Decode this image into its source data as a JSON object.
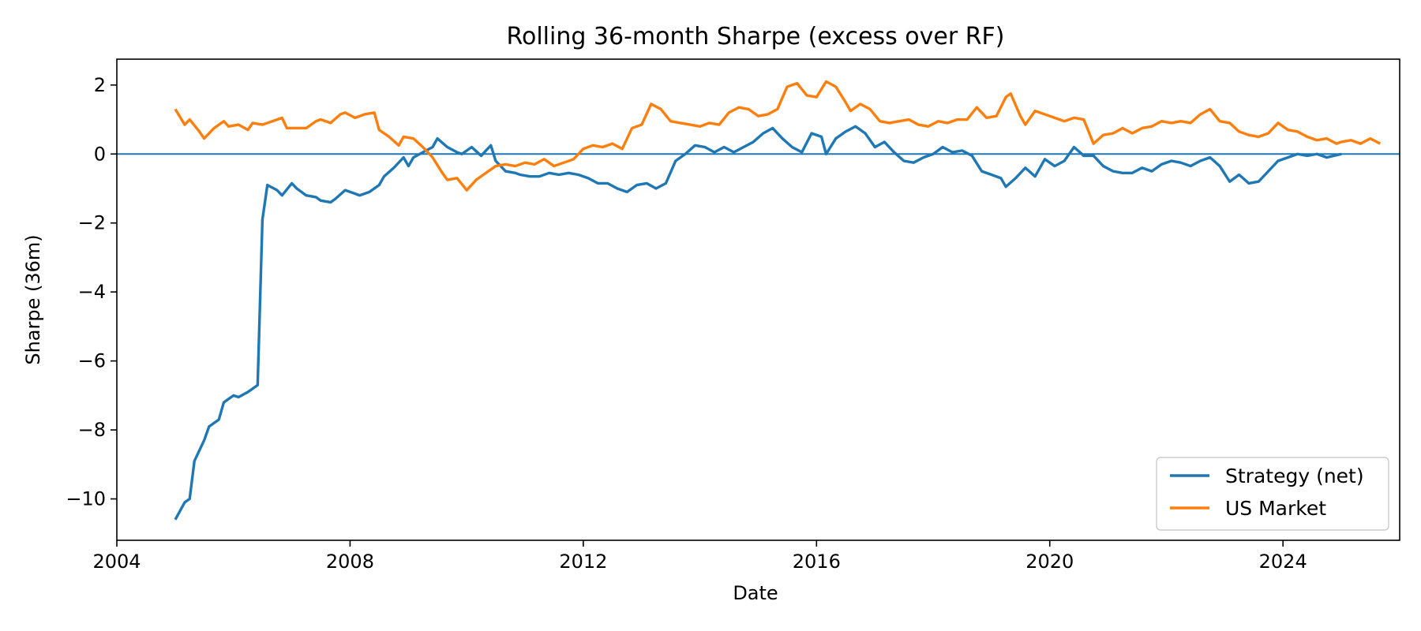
{
  "chart_data": {
    "type": "line",
    "title": "Rolling 36-month Sharpe (excess over RF)",
    "xlabel": "Date",
    "ylabel": "Sharpe (36m)",
    "xlim": [
      "2004-01-01",
      "2026-01-01"
    ],
    "ylim": [
      -11.2,
      2.75
    ],
    "x_ticks": [
      {
        "date": "2004-01-01",
        "label": "2004"
      },
      {
        "date": "2008-01-01",
        "label": "2008"
      },
      {
        "date": "2012-01-01",
        "label": "2012"
      },
      {
        "date": "2016-01-01",
        "label": "2016"
      },
      {
        "date": "2020-01-01",
        "label": "2020"
      },
      {
        "date": "2024-01-01",
        "label": "2024"
      }
    ],
    "y_ticks": [
      {
        "value": 2,
        "label": "2"
      },
      {
        "value": 0,
        "label": "0"
      },
      {
        "value": -2,
        "label": "−2"
      },
      {
        "value": -4,
        "label": "−4"
      },
      {
        "value": -6,
        "label": "−6"
      },
      {
        "value": -8,
        "label": "−8"
      },
      {
        "value": -10,
        "label": "−10"
      }
    ],
    "reference_line": {
      "y": 0,
      "color": "#1f77b4"
    },
    "grid": false,
    "legend_position": "lower-right",
    "series": [
      {
        "name": "Strategy (net)",
        "color": "#1f77b4",
        "points": [
          [
            "2005-01-01",
            -10.6
          ],
          [
            "2005-03-01",
            -10.1
          ],
          [
            "2005-04-01",
            -10.0
          ],
          [
            "2005-05-01",
            -8.9
          ],
          [
            "2005-07-01",
            -8.3
          ],
          [
            "2005-08-01",
            -7.9
          ],
          [
            "2005-10-01",
            -7.7
          ],
          [
            "2005-11-01",
            -7.2
          ],
          [
            "2006-01-01",
            -7.0
          ],
          [
            "2006-02-01",
            -7.05
          ],
          [
            "2006-04-01",
            -6.9
          ],
          [
            "2006-06-01",
            -6.7
          ],
          [
            "2006-07-01",
            -1.9
          ],
          [
            "2006-08-01",
            -0.9
          ],
          [
            "2006-10-01",
            -1.05
          ],
          [
            "2006-11-01",
            -1.2
          ],
          [
            "2007-01-01",
            -0.85
          ],
          [
            "2007-02-01",
            -1.0
          ],
          [
            "2007-04-01",
            -1.2
          ],
          [
            "2007-06-01",
            -1.25
          ],
          [
            "2007-07-01",
            -1.35
          ],
          [
            "2007-09-01",
            -1.4
          ],
          [
            "2007-10-01",
            -1.3
          ],
          [
            "2007-12-01",
            -1.05
          ],
          [
            "2008-02-01",
            -1.15
          ],
          [
            "2008-03-01",
            -1.2
          ],
          [
            "2008-05-01",
            -1.1
          ],
          [
            "2008-07-01",
            -0.9
          ],
          [
            "2008-08-01",
            -0.65
          ],
          [
            "2008-10-01",
            -0.4
          ],
          [
            "2008-12-01",
            -0.1
          ],
          [
            "2009-01-01",
            -0.35
          ],
          [
            "2009-02-01",
            -0.1
          ],
          [
            "2009-04-01",
            0.05
          ],
          [
            "2009-06-01",
            0.2
          ],
          [
            "2009-07-01",
            0.45
          ],
          [
            "2009-09-01",
            0.2
          ],
          [
            "2009-11-01",
            0.05
          ],
          [
            "2009-12-01",
            0.0
          ],
          [
            "2010-02-01",
            0.2
          ],
          [
            "2010-04-01",
            -0.05
          ],
          [
            "2010-06-01",
            0.25
          ],
          [
            "2010-07-01",
            -0.2
          ],
          [
            "2010-09-01",
            -0.5
          ],
          [
            "2010-11-01",
            -0.55
          ],
          [
            "2010-12-01",
            -0.6
          ],
          [
            "2011-02-01",
            -0.65
          ],
          [
            "2011-04-01",
            -0.65
          ],
          [
            "2011-06-01",
            -0.55
          ],
          [
            "2011-08-01",
            -0.6
          ],
          [
            "2011-10-01",
            -0.55
          ],
          [
            "2011-12-01",
            -0.6
          ],
          [
            "2012-02-01",
            -0.7
          ],
          [
            "2012-04-01",
            -0.85
          ],
          [
            "2012-06-01",
            -0.85
          ],
          [
            "2012-08-01",
            -1.0
          ],
          [
            "2012-10-01",
            -1.1
          ],
          [
            "2012-12-01",
            -0.9
          ],
          [
            "2013-02-01",
            -0.85
          ],
          [
            "2013-04-01",
            -1.0
          ],
          [
            "2013-06-01",
            -0.85
          ],
          [
            "2013-08-01",
            -0.2
          ],
          [
            "2013-10-01",
            0.0
          ],
          [
            "2013-12-01",
            0.25
          ],
          [
            "2014-02-01",
            0.2
          ],
          [
            "2014-04-01",
            0.05
          ],
          [
            "2014-06-01",
            0.2
          ],
          [
            "2014-08-01",
            0.05
          ],
          [
            "2014-10-01",
            0.2
          ],
          [
            "2014-12-01",
            0.35
          ],
          [
            "2015-02-01",
            0.6
          ],
          [
            "2015-04-01",
            0.75
          ],
          [
            "2015-06-01",
            0.45
          ],
          [
            "2015-08-01",
            0.2
          ],
          [
            "2015-10-01",
            0.05
          ],
          [
            "2015-12-01",
            0.6
          ],
          [
            "2016-02-01",
            0.5
          ],
          [
            "2016-03-01",
            0.0
          ],
          [
            "2016-05-01",
            0.45
          ],
          [
            "2016-07-01",
            0.65
          ],
          [
            "2016-09-01",
            0.8
          ],
          [
            "2016-11-01",
            0.6
          ],
          [
            "2017-01-01",
            0.2
          ],
          [
            "2017-03-01",
            0.35
          ],
          [
            "2017-05-01",
            0.05
          ],
          [
            "2017-07-01",
            -0.2
          ],
          [
            "2017-09-01",
            -0.25
          ],
          [
            "2017-11-01",
            -0.1
          ],
          [
            "2018-01-01",
            0.0
          ],
          [
            "2018-03-01",
            0.2
          ],
          [
            "2018-05-01",
            0.05
          ],
          [
            "2018-07-01",
            0.1
          ],
          [
            "2018-09-01",
            -0.05
          ],
          [
            "2018-11-01",
            -0.5
          ],
          [
            "2019-01-01",
            -0.6
          ],
          [
            "2019-03-01",
            -0.7
          ],
          [
            "2019-04-01",
            -0.95
          ],
          [
            "2019-06-01",
            -0.7
          ],
          [
            "2019-08-01",
            -0.4
          ],
          [
            "2019-10-01",
            -0.65
          ],
          [
            "2019-12-01",
            -0.15
          ],
          [
            "2020-02-01",
            -0.35
          ],
          [
            "2020-04-01",
            -0.2
          ],
          [
            "2020-06-01",
            0.2
          ],
          [
            "2020-08-01",
            -0.05
          ],
          [
            "2020-10-01",
            -0.05
          ],
          [
            "2020-12-01",
            -0.35
          ],
          [
            "2021-02-01",
            -0.5
          ],
          [
            "2021-04-01",
            -0.55
          ],
          [
            "2021-06-01",
            -0.55
          ],
          [
            "2021-08-01",
            -0.4
          ],
          [
            "2021-10-01",
            -0.5
          ],
          [
            "2021-12-01",
            -0.3
          ],
          [
            "2022-02-01",
            -0.2
          ],
          [
            "2022-04-01",
            -0.25
          ],
          [
            "2022-06-01",
            -0.35
          ],
          [
            "2022-08-01",
            -0.2
          ],
          [
            "2022-10-01",
            -0.1
          ],
          [
            "2022-12-01",
            -0.35
          ],
          [
            "2023-02-01",
            -0.8
          ],
          [
            "2023-04-01",
            -0.6
          ],
          [
            "2023-06-01",
            -0.85
          ],
          [
            "2023-08-01",
            -0.8
          ],
          [
            "2023-10-01",
            -0.5
          ],
          [
            "2023-12-01",
            -0.2
          ],
          [
            "2024-02-01",
            -0.1
          ],
          [
            "2024-04-01",
            0.0
          ],
          [
            "2024-06-01",
            -0.05
          ],
          [
            "2024-08-01",
            0.0
          ],
          [
            "2024-10-01",
            -0.1
          ],
          [
            "2025-01-01",
            0.0
          ]
        ]
      },
      {
        "name": "US Market",
        "color": "#ff7f0e",
        "points": [
          [
            "2005-01-01",
            1.3
          ],
          [
            "2005-03-01",
            0.85
          ],
          [
            "2005-04-01",
            1.0
          ],
          [
            "2005-06-01",
            0.65
          ],
          [
            "2005-07-01",
            0.45
          ],
          [
            "2005-09-01",
            0.75
          ],
          [
            "2005-11-01",
            0.95
          ],
          [
            "2005-12-01",
            0.8
          ],
          [
            "2006-02-01",
            0.85
          ],
          [
            "2006-04-01",
            0.7
          ],
          [
            "2006-05-01",
            0.9
          ],
          [
            "2006-07-01",
            0.85
          ],
          [
            "2006-09-01",
            0.95
          ],
          [
            "2006-11-01",
            1.05
          ],
          [
            "2006-12-01",
            0.75
          ],
          [
            "2007-02-01",
            0.75
          ],
          [
            "2007-04-01",
            0.75
          ],
          [
            "2007-06-01",
            0.95
          ],
          [
            "2007-07-01",
            1.0
          ],
          [
            "2007-09-01",
            0.9
          ],
          [
            "2007-11-01",
            1.15
          ],
          [
            "2007-12-01",
            1.2
          ],
          [
            "2008-02-01",
            1.05
          ],
          [
            "2008-04-01",
            1.15
          ],
          [
            "2008-06-01",
            1.2
          ],
          [
            "2008-07-01",
            0.7
          ],
          [
            "2008-09-01",
            0.5
          ],
          [
            "2008-11-01",
            0.25
          ],
          [
            "2008-12-01",
            0.5
          ],
          [
            "2009-02-01",
            0.45
          ],
          [
            "2009-04-01",
            0.2
          ],
          [
            "2009-06-01",
            -0.1
          ],
          [
            "2009-08-01",
            -0.55
          ],
          [
            "2009-09-01",
            -0.75
          ],
          [
            "2009-11-01",
            -0.7
          ],
          [
            "2010-01-01",
            -1.05
          ],
          [
            "2010-03-01",
            -0.75
          ],
          [
            "2010-05-01",
            -0.55
          ],
          [
            "2010-07-01",
            -0.35
          ],
          [
            "2010-09-01",
            -0.3
          ],
          [
            "2010-11-01",
            -0.35
          ],
          [
            "2011-01-01",
            -0.25
          ],
          [
            "2011-03-01",
            -0.3
          ],
          [
            "2011-05-01",
            -0.15
          ],
          [
            "2011-07-01",
            -0.35
          ],
          [
            "2011-09-01",
            -0.25
          ],
          [
            "2011-11-01",
            -0.15
          ],
          [
            "2012-01-01",
            0.15
          ],
          [
            "2012-03-01",
            0.25
          ],
          [
            "2012-05-01",
            0.2
          ],
          [
            "2012-07-01",
            0.3
          ],
          [
            "2012-09-01",
            0.15
          ],
          [
            "2012-11-01",
            0.75
          ],
          [
            "2013-01-01",
            0.85
          ],
          [
            "2013-03-01",
            1.45
          ],
          [
            "2013-05-01",
            1.3
          ],
          [
            "2013-07-01",
            0.95
          ],
          [
            "2013-09-01",
            0.9
          ],
          [
            "2013-11-01",
            0.85
          ],
          [
            "2014-01-01",
            0.8
          ],
          [
            "2014-03-01",
            0.9
          ],
          [
            "2014-05-01",
            0.85
          ],
          [
            "2014-07-01",
            1.2
          ],
          [
            "2014-09-01",
            1.35
          ],
          [
            "2014-11-01",
            1.3
          ],
          [
            "2015-01-01",
            1.1
          ],
          [
            "2015-03-01",
            1.15
          ],
          [
            "2015-05-01",
            1.3
          ],
          [
            "2015-07-01",
            1.95
          ],
          [
            "2015-09-01",
            2.05
          ],
          [
            "2015-11-01",
            1.7
          ],
          [
            "2016-01-01",
            1.65
          ],
          [
            "2016-03-01",
            2.1
          ],
          [
            "2016-05-01",
            1.95
          ],
          [
            "2016-07-01",
            1.5
          ],
          [
            "2016-08-01",
            1.25
          ],
          [
            "2016-10-01",
            1.45
          ],
          [
            "2016-12-01",
            1.3
          ],
          [
            "2017-02-01",
            0.95
          ],
          [
            "2017-04-01",
            0.9
          ],
          [
            "2017-06-01",
            0.95
          ],
          [
            "2017-08-01",
            1.0
          ],
          [
            "2017-10-01",
            0.85
          ],
          [
            "2017-12-01",
            0.8
          ],
          [
            "2018-02-01",
            0.95
          ],
          [
            "2018-04-01",
            0.9
          ],
          [
            "2018-06-01",
            1.0
          ],
          [
            "2018-08-01",
            1.0
          ],
          [
            "2018-10-01",
            1.35
          ],
          [
            "2018-12-01",
            1.05
          ],
          [
            "2019-02-01",
            1.1
          ],
          [
            "2019-04-01",
            1.65
          ],
          [
            "2019-05-01",
            1.75
          ],
          [
            "2019-07-01",
            1.1
          ],
          [
            "2019-08-01",
            0.85
          ],
          [
            "2019-10-01",
            1.25
          ],
          [
            "2019-12-01",
            1.15
          ],
          [
            "2020-02-01",
            1.05
          ],
          [
            "2020-04-01",
            0.95
          ],
          [
            "2020-06-01",
            1.05
          ],
          [
            "2020-08-01",
            1.0
          ],
          [
            "2020-10-01",
            0.3
          ],
          [
            "2020-12-01",
            0.55
          ],
          [
            "2021-02-01",
            0.6
          ],
          [
            "2021-04-01",
            0.75
          ],
          [
            "2021-06-01",
            0.6
          ],
          [
            "2021-08-01",
            0.75
          ],
          [
            "2021-10-01",
            0.8
          ],
          [
            "2021-12-01",
            0.95
          ],
          [
            "2022-02-01",
            0.9
          ],
          [
            "2022-04-01",
            0.95
          ],
          [
            "2022-06-01",
            0.9
          ],
          [
            "2022-08-01",
            1.15
          ],
          [
            "2022-10-01",
            1.3
          ],
          [
            "2022-12-01",
            0.95
          ],
          [
            "2023-02-01",
            0.9
          ],
          [
            "2023-04-01",
            0.65
          ],
          [
            "2023-06-01",
            0.55
          ],
          [
            "2023-08-01",
            0.5
          ],
          [
            "2023-10-01",
            0.6
          ],
          [
            "2023-12-01",
            0.9
          ],
          [
            "2024-02-01",
            0.7
          ],
          [
            "2024-04-01",
            0.65
          ],
          [
            "2024-06-01",
            0.5
          ],
          [
            "2024-08-01",
            0.4
          ],
          [
            "2024-10-01",
            0.45
          ],
          [
            "2024-12-01",
            0.3
          ],
          [
            "2025-01-01",
            0.35
          ],
          [
            "2025-03-01",
            0.4
          ],
          [
            "2025-05-01",
            0.3
          ],
          [
            "2025-07-01",
            0.45
          ],
          [
            "2025-09-01",
            0.3
          ]
        ]
      }
    ]
  }
}
